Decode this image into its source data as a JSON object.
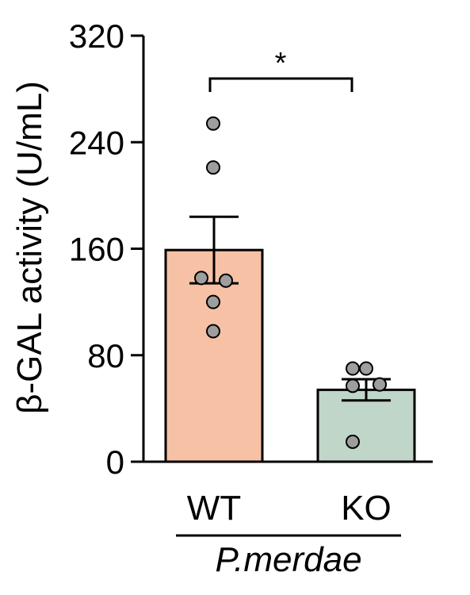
{
  "chart_data": {
    "type": "bar",
    "categories": [
      "WT",
      "KO"
    ],
    "values": [
      159,
      54
    ],
    "errors": [
      25,
      8
    ],
    "points": [
      [
        254,
        221,
        138,
        136,
        120,
        98
      ],
      [
        70,
        70,
        58,
        57,
        58,
        15
      ]
    ],
    "colors": [
      "#F6C1A4",
      "#BFD6C8"
    ],
    "point_color": "#9E9E9E",
    "ylabel": "β-GAL activity (U/mL)",
    "ylim": [
      0,
      320
    ],
    "yticks": [
      "0",
      "80",
      "160",
      "240",
      "320"
    ],
    "group_label": "P.merdae",
    "significance": "*"
  }
}
